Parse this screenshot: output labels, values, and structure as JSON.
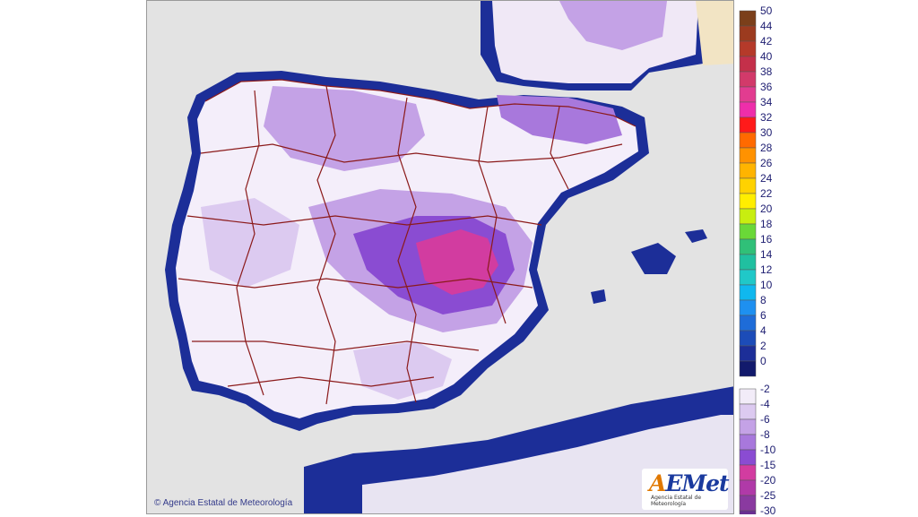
{
  "map": {
    "copyright": "Agencia Estatal de Meteorología",
    "logo": {
      "main_prefix": "A",
      "main_rest": "EMet",
      "sub": "Agencia Estatal de Meteorología"
    }
  },
  "legend": {
    "upper_scale": [
      {
        "label": "50",
        "color": "#7b3f1a"
      },
      {
        "label": "44",
        "color": "#9c3b1f"
      },
      {
        "label": "42",
        "color": "#b53a2a"
      },
      {
        "label": "40",
        "color": "#c4304a"
      },
      {
        "label": "38",
        "color": "#d23a6a"
      },
      {
        "label": "36",
        "color": "#e23c90"
      },
      {
        "label": "34",
        "color": "#ee2eaa"
      },
      {
        "label": "32",
        "color": "#ff1a1a"
      },
      {
        "label": "30",
        "color": "#ff6a00"
      },
      {
        "label": "28",
        "color": "#ff9200"
      },
      {
        "label": "26",
        "color": "#ffb400"
      },
      {
        "label": "24",
        "color": "#ffd200"
      },
      {
        "label": "22",
        "color": "#ffee00"
      },
      {
        "label": "20",
        "color": "#c8ee10"
      },
      {
        "label": "18",
        "color": "#6ad838"
      },
      {
        "label": "16",
        "color": "#30c078"
      },
      {
        "label": "14",
        "color": "#20c0a0"
      },
      {
        "label": "12",
        "color": "#20c8c8"
      },
      {
        "label": "10",
        "color": "#10b8ee"
      },
      {
        "label": "8",
        "color": "#1e90f0"
      },
      {
        "label": "6",
        "color": "#1e6cd8"
      },
      {
        "label": "4",
        "color": "#1c4cb8"
      },
      {
        "label": "2",
        "color": "#1c2e98"
      },
      {
        "label": "0",
        "color": "#121a6c"
      }
    ],
    "lower_scale": [
      {
        "label": "-2",
        "color": "#f2ecf8"
      },
      {
        "label": "-4",
        "color": "#dccaf0"
      },
      {
        "label": "-6",
        "color": "#c4a2e6"
      },
      {
        "label": "-8",
        "color": "#a878dc"
      },
      {
        "label": "-10",
        "color": "#8a4cd2"
      },
      {
        "label": "-15",
        "color": "#d23ca0"
      },
      {
        "label": "-20",
        "color": "#b03aa8"
      },
      {
        "label": "-25",
        "color": "#8a3aa0"
      },
      {
        "label": "-30",
        "color": "#6a3092"
      }
    ]
  },
  "colors": {
    "sea": "#e3e3e3",
    "coast_band": "#1c2e98",
    "cold_light": "#dccaf0",
    "cold_mid": "#c4a2e6",
    "cold_strong": "#8a4cd2",
    "cold_extreme": "#d23ca0",
    "province_border": "#8b1a1a",
    "france": "#f2e4c4"
  }
}
